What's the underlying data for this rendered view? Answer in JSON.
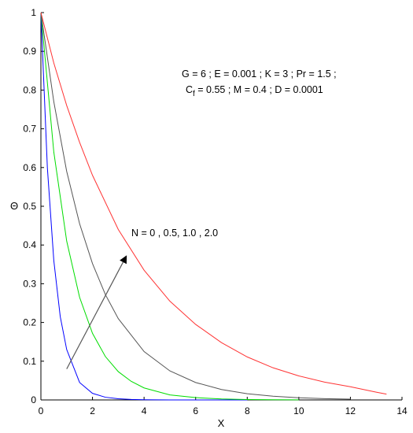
{
  "chart_data": {
    "type": "line",
    "xlabel": "X",
    "ylabel": "Θ",
    "xlim": [
      0,
      14
    ],
    "ylim": [
      0,
      1
    ],
    "xticks": [
      "0",
      "2",
      "4",
      "6",
      "8",
      "10",
      "12",
      "14"
    ],
    "yticks": [
      "0",
      "0.1",
      "0.2",
      "0.3",
      "0.4",
      "0.5",
      "0.6",
      "0.7",
      "0.8",
      "0.9",
      "1"
    ],
    "grid": false,
    "params_line1": "G = 6 ;  E = 0.001 ; K = 3 ; Pr = 1.5 ;",
    "params_line2_cf": "C",
    "params_line2_sub": "f",
    "params_line2_rest": " = 0.55 ; M = 0.4 ; D = 0.0001",
    "arrow_label": "N = 0 , 0.5,  1.0 , 2.0",
    "arrow_from": [
      1.0,
      0.08
    ],
    "arrow_to": [
      3.3,
      0.37
    ],
    "colors": {
      "axis": "#000000",
      "arrow": "#555555"
    },
    "series": [
      {
        "color": "#0000ff",
        "x": [
          0,
          0.25,
          0.5,
          0.75,
          1.0,
          1.5,
          2.0,
          2.5,
          3.0,
          3.5,
          4.0,
          5.0,
          6.0,
          7.0,
          8.0
        ],
        "values": [
          1.0,
          0.6,
          0.36,
          0.215,
          0.13,
          0.045,
          0.017,
          0.007,
          0.003,
          0.0013,
          0.0006,
          0.0001,
          0,
          0,
          0
        ]
      },
      {
        "color": "#00dd00",
        "x": [
          0,
          0.5,
          1.0,
          1.5,
          2.0,
          2.5,
          3.0,
          3.5,
          4.0,
          5.0,
          6.0,
          7.0,
          8.0,
          9.0,
          10.0
        ],
        "values": [
          1.0,
          0.64,
          0.41,
          0.265,
          0.172,
          0.112,
          0.073,
          0.048,
          0.031,
          0.013,
          0.006,
          0.0025,
          0.001,
          0.0004,
          0.0002
        ]
      },
      {
        "color": "#555555",
        "x": [
          0,
          0.5,
          1.0,
          1.5,
          2.0,
          2.5,
          3.0,
          4.0,
          5.0,
          6.0,
          7.0,
          8.0,
          9.0,
          10.0,
          11.0,
          12.0
        ],
        "values": [
          1.0,
          0.77,
          0.59,
          0.455,
          0.352,
          0.272,
          0.21,
          0.125,
          0.075,
          0.045,
          0.027,
          0.016,
          0.0096,
          0.0057,
          0.0034,
          0.002
        ]
      },
      {
        "color": "#ff3333",
        "x": [
          0,
          0.5,
          1.0,
          1.5,
          2.0,
          3.0,
          4.0,
          5.0,
          6.0,
          7.0,
          8.0,
          9.0,
          10.0,
          11.0,
          12.0,
          13.0,
          13.4
        ],
        "values": [
          1.0,
          0.87,
          0.76,
          0.665,
          0.58,
          0.44,
          0.335,
          0.255,
          0.195,
          0.148,
          0.111,
          0.083,
          0.062,
          0.046,
          0.034,
          0.02,
          0.015
        ]
      }
    ]
  }
}
